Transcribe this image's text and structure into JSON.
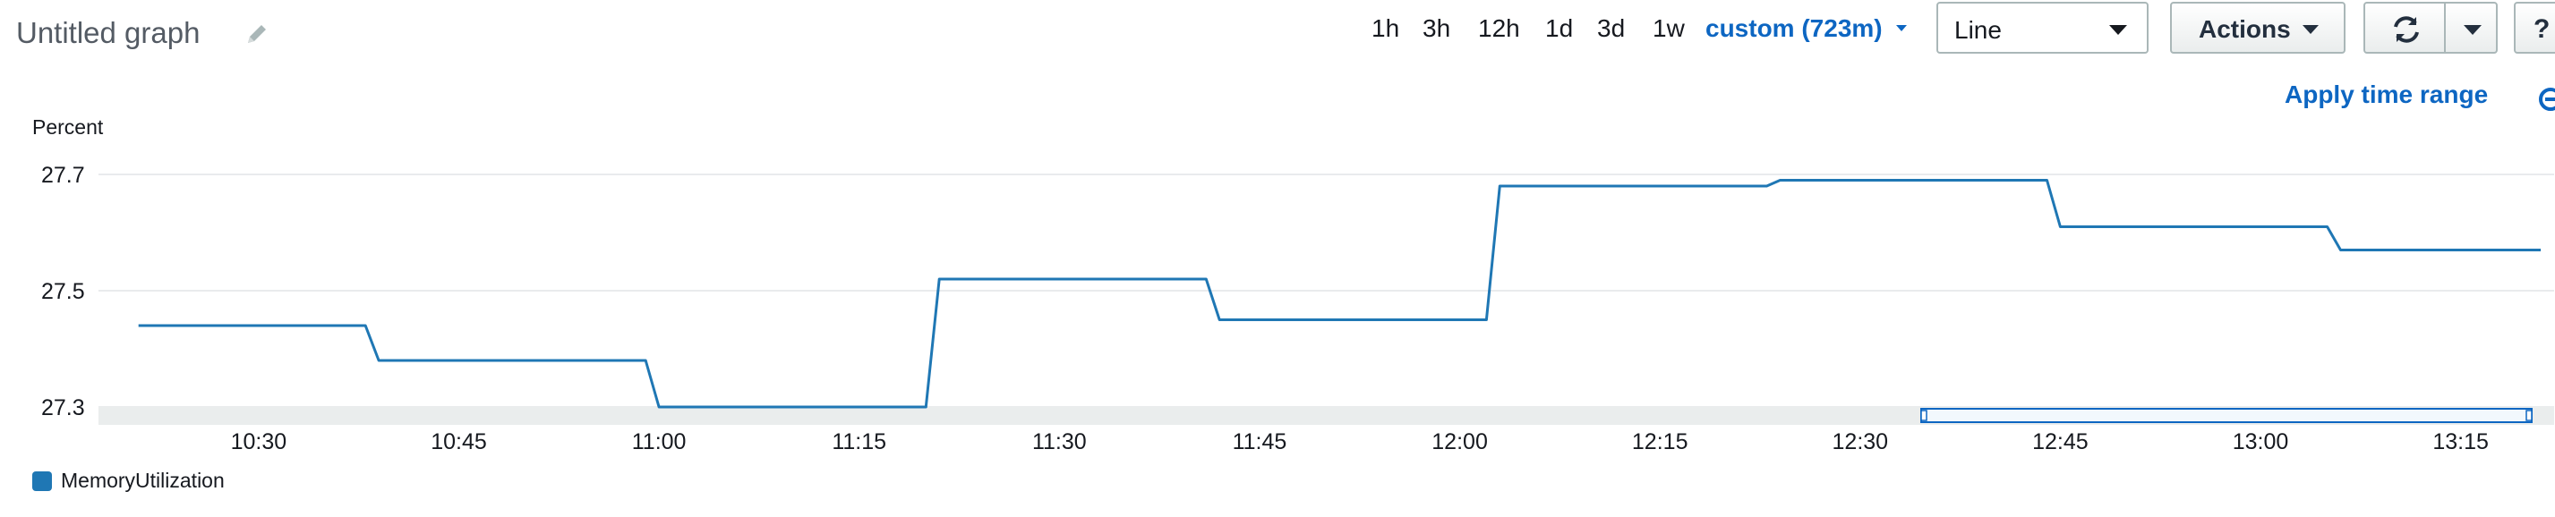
{
  "graph": {
    "title": "Untitled graph"
  },
  "toolbar": {
    "ranges": [
      "1h",
      "3h",
      "12h",
      "1d",
      "3d",
      "1w"
    ],
    "custom_range": "custom (723m)",
    "view_select": "Line",
    "actions_label": "Actions",
    "help_label": "?",
    "apply_time_range": "Apply time range"
  },
  "colors": {
    "series": "#1f77b4",
    "link": "#0d66c2"
  },
  "chart_data": {
    "type": "line",
    "ylabel": "Percent",
    "ylim": [
      27.3,
      27.7
    ],
    "yticks": [
      27.3,
      27.5,
      27.7
    ],
    "xlim": [
      "10:18",
      "13:22"
    ],
    "xticks": [
      "10:30",
      "10:45",
      "11:00",
      "11:15",
      "11:30",
      "11:45",
      "12:00",
      "12:15",
      "12:30",
      "12:45",
      "13:00",
      "13:15"
    ],
    "grid": true,
    "legend_position": "bottom-left",
    "series": [
      {
        "name": "MemoryUtilization",
        "color": "#1f77b4",
        "x": [
          "10:21",
          "10:38",
          "10:39",
          "10:59",
          "11:00",
          "11:20",
          "11:21",
          "11:41",
          "11:42",
          "12:02",
          "12:03",
          "12:23",
          "12:24",
          "12:44",
          "12:45",
          "13:05",
          "13:06",
          "13:21"
        ],
        "y": [
          27.44,
          27.44,
          27.38,
          27.38,
          27.3,
          27.3,
          27.52,
          27.52,
          27.45,
          27.45,
          27.68,
          27.68,
          27.69,
          27.69,
          27.61,
          27.61,
          27.57,
          27.57
        ]
      }
    ]
  }
}
